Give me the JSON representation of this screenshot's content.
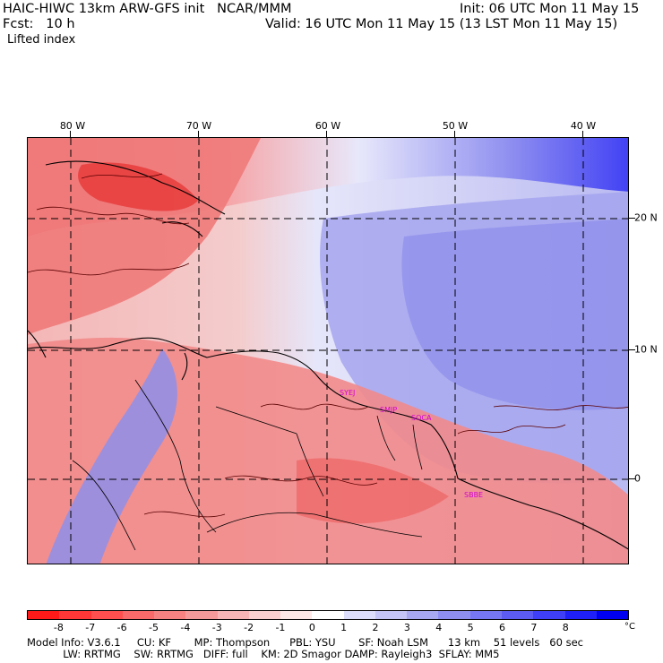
{
  "header": {
    "title": "HAIC-HIWC 13km ARW-GFS init   NCAR/MMM",
    "init": "Init: 06 UTC Mon 11 May 15",
    "fcst": "Fcst:   10 h",
    "valid": "Valid: 16 UTC Mon 11 May 15 (13 LST Mon 11 May 15)",
    "field": "Lifted index"
  },
  "map": {
    "lon_labels": [
      "80 W",
      "70 W",
      "60 W",
      "50 W",
      "40 W"
    ],
    "lat_labels": [
      "20 N",
      "10 N",
      "0"
    ],
    "stations": [
      "SYEJ",
      "SMJP",
      "SOCA",
      "SBBE"
    ],
    "colors": {
      "land_line": "#000000",
      "contour": "#5a0000",
      "station": "#d400d4",
      "grid": "#000000"
    }
  },
  "colorbar": {
    "labels": [
      "-8",
      "-7",
      "-6",
      "-5",
      "-4",
      "-3",
      "-2",
      "-1",
      "0",
      "1",
      "2",
      "3",
      "4",
      "5",
      "6",
      "7",
      "8"
    ],
    "unit": "°C",
    "colors": [
      "#ff1a1a",
      "#ff3737",
      "#ff4f4f",
      "#fb6a6a",
      "#f78282",
      "#f59a9a",
      "#f7b5b5",
      "#f9cfcf",
      "#fde7e7",
      "#ffffff",
      "#dcdcfb",
      "#c4c4f6",
      "#a8a8f0",
      "#8e8ef0",
      "#7676f2",
      "#5c5cf5",
      "#3f3ff8",
      "#1f1ff8",
      "#0000f0"
    ]
  },
  "footer": {
    "line1": "Model Info: V3.6.1     CU: KF       MP: Thompson      PBL: YSU       SF: Noah LSM      13 km    51 levels   60 sec",
    "line2": "           LW: RRTMG    SW: RRTMG   DIFF: full    KM: 2D Smagor DAMP: Rayleigh3  SFLAY: MM5"
  }
}
